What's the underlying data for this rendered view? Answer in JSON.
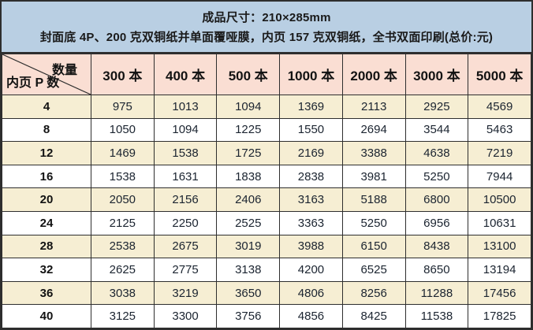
{
  "header": {
    "line1": "成品尺寸：210×285mm",
    "line2": "封面底 4P、200 克双铜纸并单面覆哑膜，内页 157 克双铜纸，全书双面印刷(总价:元)"
  },
  "table": {
    "corner": {
      "top_right": "数量",
      "bottom_left": "内页 P 数"
    },
    "columns": [
      "300 本",
      "400 本",
      "500 本",
      "1000 本",
      "2000 本",
      "3000 本",
      "5000 本"
    ],
    "rows": [
      {
        "pages": "4",
        "prices": [
          "975",
          "1013",
          "1094",
          "1369",
          "2113",
          "2925",
          "4569"
        ]
      },
      {
        "pages": "8",
        "prices": [
          "1050",
          "1094",
          "1225",
          "1550",
          "2694",
          "3544",
          "5463"
        ]
      },
      {
        "pages": "12",
        "prices": [
          "1469",
          "1538",
          "1725",
          "2169",
          "3388",
          "4638",
          "7219"
        ]
      },
      {
        "pages": "16",
        "prices": [
          "1538",
          "1631",
          "1838",
          "2838",
          "3981",
          "5250",
          "7944"
        ]
      },
      {
        "pages": "20",
        "prices": [
          "2050",
          "2156",
          "2406",
          "3163",
          "5188",
          "6800",
          "10500"
        ]
      },
      {
        "pages": "24",
        "prices": [
          "2125",
          "2250",
          "2525",
          "3363",
          "5250",
          "6956",
          "10631"
        ]
      },
      {
        "pages": "28",
        "prices": [
          "2538",
          "2675",
          "3019",
          "3988",
          "6150",
          "8438",
          "13100"
        ]
      },
      {
        "pages": "32",
        "prices": [
          "2625",
          "2775",
          "3138",
          "4200",
          "6525",
          "8650",
          "13194"
        ]
      },
      {
        "pages": "36",
        "prices": [
          "3038",
          "3219",
          "3650",
          "4806",
          "8256",
          "11288",
          "17456"
        ]
      },
      {
        "pages": "40",
        "prices": [
          "3125",
          "3300",
          "3756",
          "4856",
          "8425",
          "11538",
          "17825"
        ]
      }
    ]
  },
  "colors": {
    "band_bg": "#B9CFE3",
    "header_bg": "#FADED3",
    "row_alt_bg": "#F6EED3",
    "row_bg": "#FFFFFF",
    "border": "#2E2E2E",
    "text": "#1A1A1A"
  }
}
